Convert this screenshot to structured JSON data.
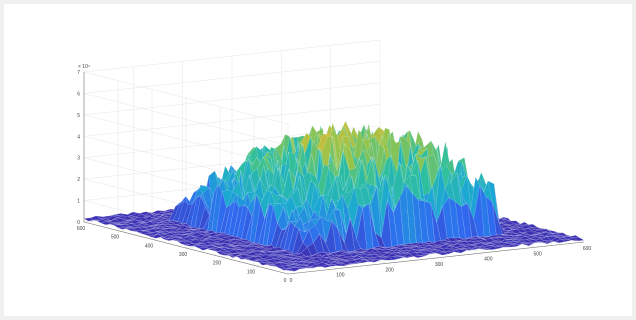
{
  "chart_data": {
    "type": "surface",
    "title": "",
    "xlabel": "",
    "ylabel": "",
    "zlabel": "",
    "z_exponent_label": "× 10⁴",
    "x_ticks": [
      "0",
      "100",
      "200",
      "300",
      "400",
      "500",
      "600"
    ],
    "y_ticks": [
      "0",
      "100",
      "200",
      "300",
      "400",
      "500",
      "600"
    ],
    "z_ticks": [
      "0",
      "1",
      "2",
      "3",
      "4",
      "5",
      "6",
      "7"
    ],
    "xlim": [
      0,
      600
    ],
    "ylim": [
      0,
      600
    ],
    "zlim": [
      0,
      70000
    ],
    "grid": true,
    "colormap": [
      "#3e26a8",
      "#2f6bf0",
      "#1ba8d2",
      "#2fbf9e",
      "#95c44b",
      "#e2b935",
      "#fadb24"
    ],
    "surface_summary": {
      "plateau_region_x": [
        120,
        520
      ],
      "plateau_region_y": [
        120,
        520
      ],
      "background_level": 1500,
      "plateau_mean_level": 42000,
      "peak_level": 55000
    }
  }
}
